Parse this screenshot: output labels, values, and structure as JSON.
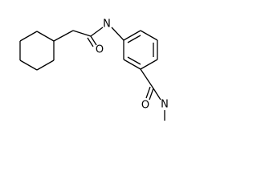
{
  "atom_labels": [
    "N",
    "O",
    "O",
    "N"
  ]
}
